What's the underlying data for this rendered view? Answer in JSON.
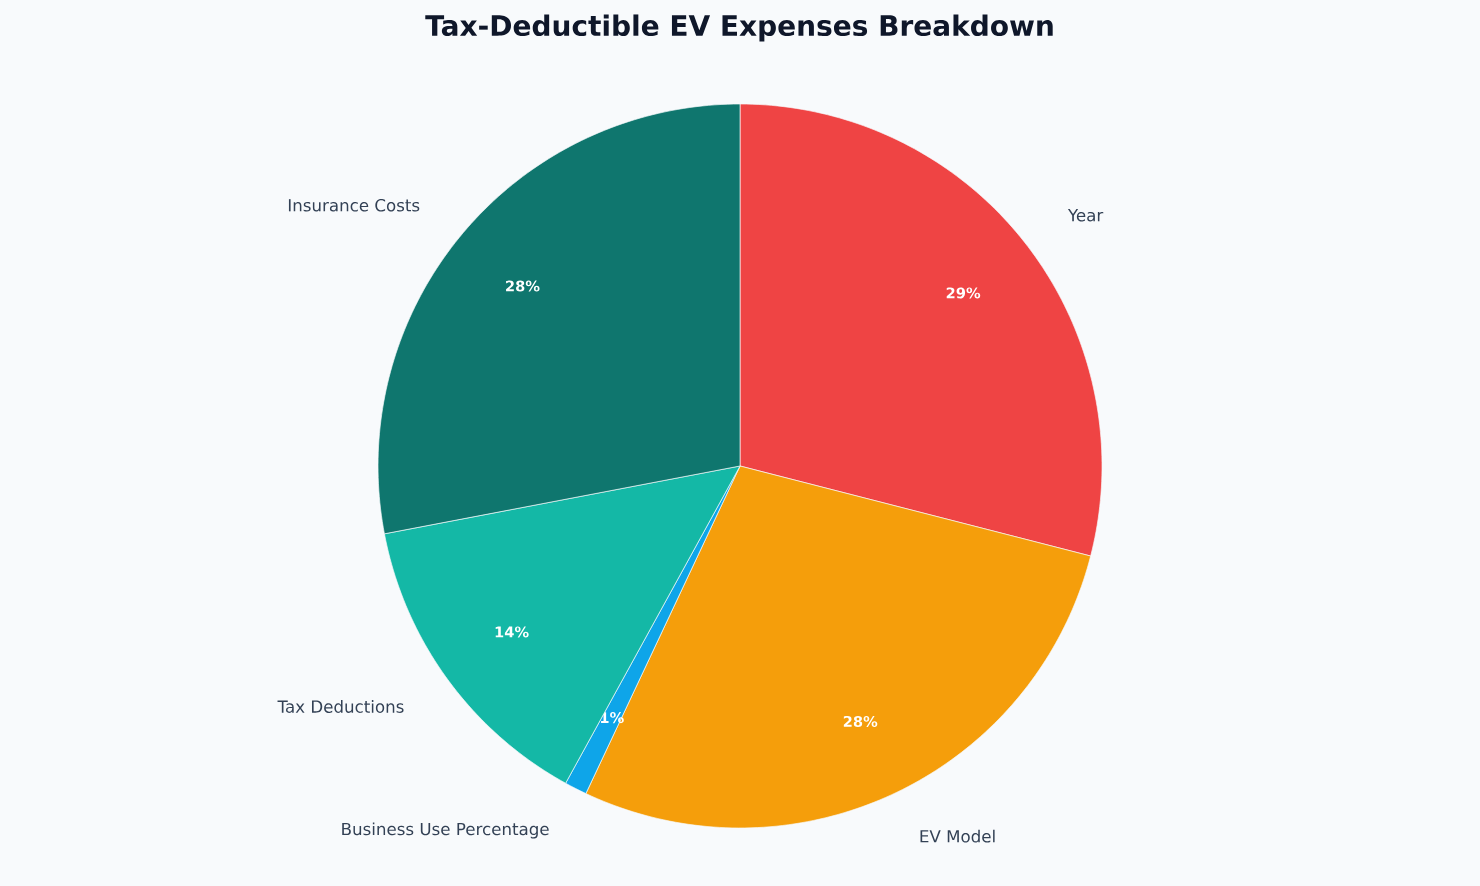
{
  "chart_data": {
    "type": "pie",
    "title": "Tax-Deductible EV Expenses Breakdown",
    "categories": [
      "Year",
      "EV Model",
      "Business Use Percentage",
      "Tax Deductions",
      "Insurance Costs"
    ],
    "values": [
      29,
      28,
      1,
      14,
      28
    ],
    "value_labels": [
      "29%",
      "28%",
      "1%",
      "14%",
      "28%"
    ],
    "colors": [
      "#ef4444",
      "#f59e0b",
      "#0ea5e9",
      "#14b8a6",
      "#0f766e"
    ]
  }
}
